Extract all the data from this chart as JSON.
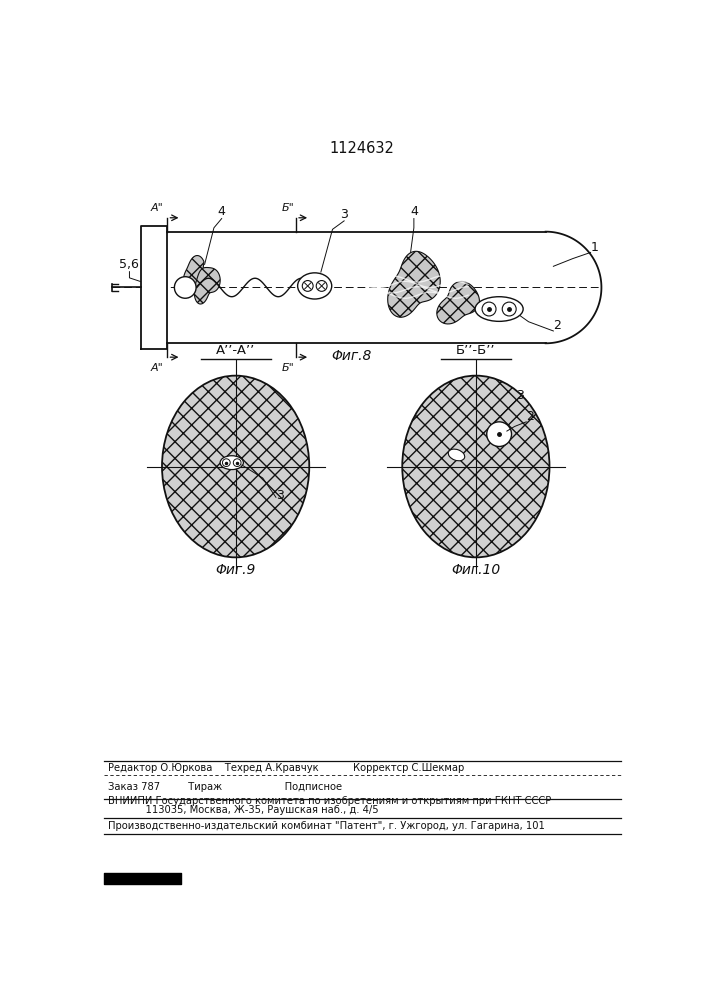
{
  "title": "1124632",
  "fig8_label": "Φиг.8",
  "fig9_label": "Φиг.9",
  "fig10_label": "Φиг.10",
  "section_AA": "A’’-A’’",
  "section_BB": "Б’’-Б’’",
  "line_color": "#111111",
  "footer_line1": "Редактор О.Юркова    Техред А.Кравчук           Корректср С.Шекмар",
  "footer_line2": "Заказ 787         Тираж                    Подписное",
  "footer_line3": "ВНИИПИ Государственного комитета по изобретениям и открытиям при ГКНТ СССР",
  "footer_line4": "            113035, Москва, Ж-35, Раушская наб., д. 4/5",
  "footer_line5": "Производственно-издательский комбинат \"Патент\", г. Ужгород, ул. Гагарина, 101"
}
